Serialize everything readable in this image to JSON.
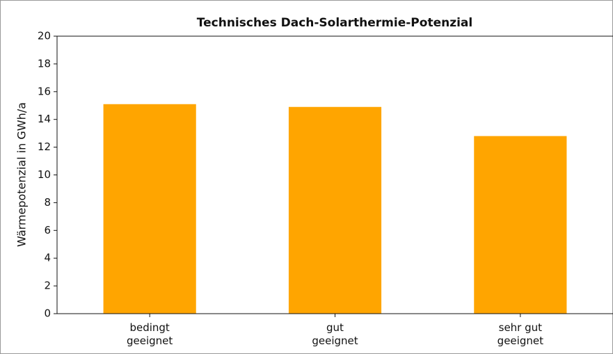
{
  "chart_data": {
    "type": "bar",
    "title": "Technisches Dach-Solarthermie-Potenzial",
    "ylabel": "Wärmepotenzial in GWh/a",
    "categories": [
      "bedingt\ngeeignet",
      "gut\ngeeignet",
      "sehr gut\ngeeignet"
    ],
    "values": [
      15.1,
      14.9,
      12.8
    ],
    "color": "#ffa500",
    "ylim": [
      0,
      20
    ],
    "yticks": [
      0,
      2,
      4,
      6,
      8,
      10,
      12,
      14,
      16,
      18,
      20
    ],
    "grid": false
  }
}
